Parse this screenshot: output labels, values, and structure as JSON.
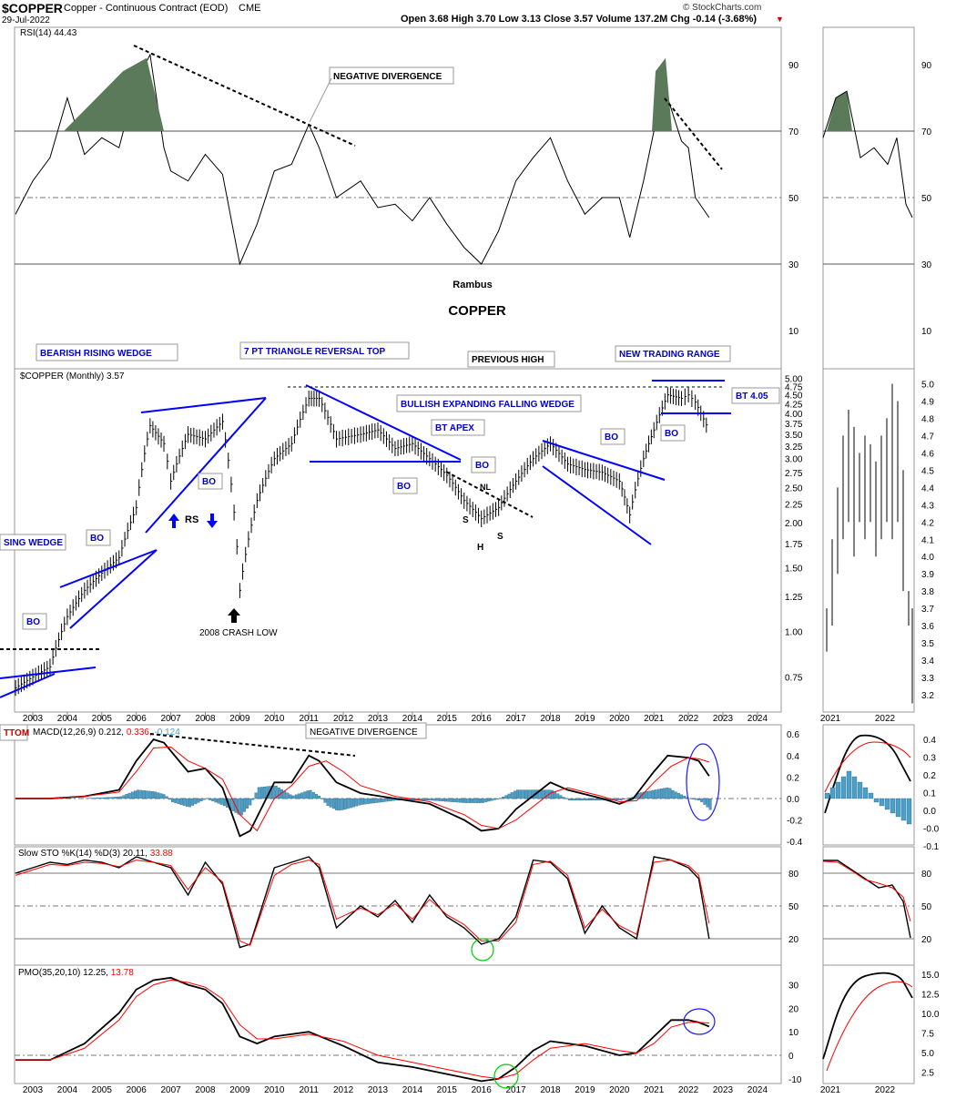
{
  "header": {
    "symbol": "$COPPER",
    "name": "Copper - Continuous Contract (EOD)",
    "exchange": "CME",
    "date": "29-Jul-2022",
    "ohlc": "Open 3.68  High 3.70  Low 3.13  Close 3.57  Volume 137.2M  Chg -0.14 (-3.68%)",
    "chg_arrow": "▼",
    "watermark": "© StockCharts.com"
  },
  "colors": {
    "price_bar": "#000000",
    "trendline": "#0000ff",
    "rsi_fill": "#5a7a5a",
    "macd_hist": "#4aa0c8",
    "signal": "#ff0000",
    "highlight_circle_green": "#00cc00",
    "highlight_circle_blue": "#1a1aff",
    "annotation_text": "#0000cc"
  },
  "panels": {
    "rsi": {
      "label": "RSI(14) 44.43",
      "ticks": [
        90,
        70,
        50,
        30,
        10
      ]
    },
    "price": {
      "label": "$COPPER (Monthly) 3.57",
      "ticks": [
        "5.00",
        "4.75",
        "4.50",
        "4.25",
        "4.00",
        "3.75",
        "3.50",
        "3.25",
        "3.00",
        "2.75",
        "2.50",
        "2.25",
        "2.00",
        "1.75",
        "1.50",
        "1.25",
        "1.00",
        "0.75"
      ]
    },
    "macd": {
      "label_prefix": "MACD(12,26,9) 0.212,",
      "label_signal": "0.336,",
      "label_hist": "-0.124",
      "ticks": [
        "0.6",
        "0.4",
        "0.2",
        "0.0",
        "-0.2",
        "-0.4"
      ]
    },
    "sto": {
      "label_prefix": "Slow STO %K(14) %D(3) 20.11,",
      "label_d": "33.88",
      "ticks": [
        80,
        50,
        20
      ]
    },
    "pmo": {
      "label_prefix": "PMO(35,20,10) 12.25,",
      "label_signal": "13.78",
      "ticks": [
        30,
        20,
        10,
        0,
        -10
      ]
    }
  },
  "inset": {
    "rsi_ticks": [
      90,
      70,
      50,
      30,
      10
    ],
    "price_ticks": [
      "5.0",
      "4.9",
      "4.8",
      "4.7",
      "4.6",
      "4.5",
      "4.4",
      "4.3",
      "4.2",
      "4.1",
      "4.0",
      "3.9",
      "3.8",
      "3.7",
      "3.6",
      "3.5",
      "3.4",
      "3.3",
      "3.2"
    ],
    "macd_ticks": [
      "0.4",
      "0.3",
      "0.2",
      "0.1",
      "0.0",
      "-0.0",
      "-0.1"
    ],
    "sto_ticks": [
      80,
      50,
      20
    ],
    "pmo_ticks": [
      "15.0",
      "12.5",
      "10.0",
      "7.5",
      "5.0",
      "2.5"
    ],
    "years": [
      "2021",
      "2022"
    ]
  },
  "x_axis_years": [
    "2003",
    "2004",
    "2005",
    "2006",
    "2007",
    "2008",
    "2009",
    "2010",
    "2011",
    "2012",
    "2013",
    "2014",
    "2015",
    "2016",
    "2017",
    "2018",
    "2019",
    "2020",
    "2021",
    "2022",
    "2023",
    "2024"
  ],
  "annotations": {
    "title": "COPPER",
    "author": "Rambus",
    "negative_divergence_rsi": "NEGATIVE DIVERGENCE",
    "negative_divergence_macd": "NEGATIVE DIVERGENCE",
    "bearish_rising_wedge": "BEARISH RISING WEDGE",
    "triangle_top": "7 PT TRIANGLE REVERSAL TOP",
    "previous_high": "PREVIOUS HIGH",
    "new_trading_range": "NEW TRADING RANGE",
    "expanding_wedge": "BULLISH EXPANDING FALLING WEDGE",
    "bt_apex": "BT APEX",
    "bt_405": "BT 4.05",
    "rising_wedge_left": "SING WEDGE",
    "bottom_left": "TTOM",
    "crash_low": "2008 CRASH LOW",
    "rs": "RS",
    "s_left": "S",
    "s_right": "S",
    "h": "H",
    "nl": "NL",
    "bo": "BO"
  },
  "chart_data": [
    {
      "type": "line",
      "title": "RSI(14) 44.43",
      "x_range": [
        2002.5,
        2025
      ],
      "ylim": [
        0,
        100
      ],
      "series": [
        {
          "name": "RSI(14)",
          "x": [
            2002.5,
            2003.0,
            2003.5,
            2004.0,
            2004.5,
            2005.0,
            2005.5,
            2006.0,
            2006.4,
            2006.8,
            2007.0,
            2007.5,
            2008.0,
            2008.5,
            2009.0,
            2009.5,
            2010.0,
            2010.5,
            2011.0,
            2011.3,
            2011.8,
            2012.5,
            2013.0,
            2013.5,
            2014.0,
            2014.5,
            2015.0,
            2015.5,
            2016.0,
            2016.5,
            2017.0,
            2017.5,
            2018.0,
            2018.5,
            2019.0,
            2019.5,
            2020.0,
            2020.3,
            2020.7,
            2021.0,
            2021.4,
            2021.8,
            2022.0,
            2022.2,
            2022.6
          ],
          "values": [
            45,
            55,
            62,
            80,
            63,
            68,
            65,
            85,
            93,
            65,
            58,
            55,
            63,
            57,
            30,
            42,
            58,
            60,
            72,
            65,
            50,
            55,
            47,
            48,
            43,
            50,
            42,
            35,
            30,
            40,
            55,
            62,
            68,
            55,
            45,
            50,
            50,
            38,
            55,
            70,
            80,
            67,
            65,
            50,
            44
          ]
        }
      ],
      "reference_lines": [
        70,
        50,
        30
      ]
    },
    {
      "type": "bar",
      "title": "$COPPER (Monthly) 3.57",
      "x_range": [
        2002.5,
        2025
      ],
      "ylim": [
        0.6,
        5.1
      ],
      "y_scale": "log",
      "series": [
        {
          "name": "$COPPER close",
          "x": [
            2002.5,
            2003.0,
            2003.5,
            2004.0,
            2004.5,
            2005.0,
            2005.5,
            2006.0,
            2006.4,
            2006.8,
            2007.0,
            2007.5,
            2008.0,
            2008.5,
            2009.0,
            2009.5,
            2010.0,
            2010.5,
            2011.0,
            2011.3,
            2011.8,
            2012.5,
            2013.0,
            2013.5,
            2014.0,
            2014.5,
            2015.0,
            2015.5,
            2016.0,
            2016.5,
            2017.0,
            2017.5,
            2018.0,
            2018.5,
            2019.0,
            2019.5,
            2020.0,
            2020.3,
            2020.7,
            2021.0,
            2021.4,
            2021.8,
            2022.0,
            2022.2,
            2022.6
          ],
          "values": [
            0.7,
            0.75,
            0.8,
            1.1,
            1.3,
            1.45,
            1.6,
            2.2,
            3.7,
            3.3,
            2.6,
            3.5,
            3.4,
            3.8,
            1.3,
            2.3,
            3.0,
            3.3,
            4.4,
            4.4,
            3.4,
            3.5,
            3.6,
            3.2,
            3.3,
            3.0,
            2.7,
            2.3,
            2.05,
            2.2,
            2.6,
            3.0,
            3.3,
            2.9,
            2.8,
            2.75,
            2.6,
            2.1,
            3.0,
            3.6,
            4.5,
            4.4,
            4.5,
            4.3,
            3.57
          ]
        }
      ],
      "trendlines": [
        "BEARISH RISING WEDGE",
        "7 PT TRIANGLE REVERSAL TOP",
        "BULLISH EXPANDING FALLING WEDGE",
        "NEW TRADING RANGE"
      ]
    },
    {
      "type": "line",
      "title": "MACD(12,26,9) 0.212, 0.336, -0.124",
      "x_range": [
        2002.5,
        2025
      ],
      "ylim": [
        -0.45,
        0.65
      ],
      "series": [
        {
          "name": "MACD",
          "x": [
            2002.5,
            2003.5,
            2004.5,
            2005.5,
            2006.0,
            2006.5,
            2006.8,
            2007.5,
            2008.0,
            2008.5,
            2009.0,
            2009.3,
            2010.0,
            2010.5,
            2011.0,
            2011.3,
            2011.8,
            2012.5,
            2013.5,
            2014.5,
            2015.5,
            2016.0,
            2016.5,
            2017.0,
            2018.0,
            2018.5,
            2019.5,
            2020.0,
            2020.4,
            2021.0,
            2021.4,
            2022.0,
            2022.3,
            2022.6
          ],
          "values": [
            0.0,
            0.0,
            0.02,
            0.08,
            0.35,
            0.55,
            0.52,
            0.25,
            0.28,
            0.1,
            -0.35,
            -0.3,
            0.15,
            0.15,
            0.4,
            0.35,
            0.15,
            0.05,
            0.0,
            -0.05,
            -0.2,
            -0.3,
            -0.28,
            -0.1,
            0.15,
            0.08,
            0.0,
            -0.05,
            0.0,
            0.25,
            0.4,
            0.38,
            0.35,
            0.21
          ]
        },
        {
          "name": "Signal",
          "x": [
            2002.5,
            2003.5,
            2004.5,
            2005.5,
            2006.0,
            2006.5,
            2007.0,
            2007.5,
            2008.0,
            2008.5,
            2009.0,
            2009.5,
            2010.0,
            2010.5,
            2011.0,
            2011.5,
            2012.0,
            2012.5,
            2013.5,
            2014.5,
            2015.5,
            2016.0,
            2016.5,
            2017.0,
            2018.0,
            2018.5,
            2019.5,
            2020.0,
            2020.5,
            2021.0,
            2021.5,
            2022.0,
            2022.3,
            2022.6
          ],
          "values": [
            0.0,
            0.0,
            0.02,
            0.06,
            0.25,
            0.47,
            0.48,
            0.35,
            0.28,
            0.18,
            -0.15,
            -0.3,
            0.0,
            0.12,
            0.3,
            0.35,
            0.25,
            0.12,
            0.02,
            -0.03,
            -0.15,
            -0.25,
            -0.28,
            -0.2,
            0.05,
            0.1,
            0.02,
            -0.03,
            -0.02,
            0.15,
            0.3,
            0.38,
            0.37,
            0.34
          ]
        }
      ],
      "histogram": [
        {
          "x": 2006.2,
          "value": 0.12
        },
        {
          "x": 2008.8,
          "value": -0.15
        },
        {
          "x": 2009.8,
          "value": 0.15
        },
        {
          "x": 2012.0,
          "value": -0.1
        },
        {
          "x": 2017.5,
          "value": 0.12
        },
        {
          "x": 2022.6,
          "value": -0.124
        }
      ]
    },
    {
      "type": "line",
      "title": "Slow STO %K(14) %D(3) 20.11, 33.88",
      "x_range": [
        2002.5,
        2025
      ],
      "ylim": [
        0,
        100
      ],
      "series": [
        {
          "name": "%K",
          "x": [
            2002.5,
            2003.0,
            2003.5,
            2004.0,
            2004.5,
            2005.0,
            2005.5,
            2006.0,
            2006.5,
            2007.0,
            2007.5,
            2008.0,
            2008.5,
            2009.0,
            2009.3,
            2010.0,
            2010.5,
            2011.0,
            2011.3,
            2011.8,
            2012.5,
            2013.0,
            2013.5,
            2014.0,
            2014.5,
            2015.0,
            2015.5,
            2016.0,
            2016.5,
            2017.0,
            2017.5,
            2018.0,
            2018.5,
            2019.0,
            2019.5,
            2020.0,
            2020.5,
            2021.0,
            2021.5,
            2022.0,
            2022.3,
            2022.6
          ],
          "values": [
            80,
            85,
            90,
            88,
            92,
            90,
            85,
            95,
            90,
            85,
            60,
            90,
            70,
            12,
            15,
            85,
            90,
            95,
            85,
            30,
            50,
            40,
            55,
            35,
            60,
            40,
            30,
            15,
            20,
            40,
            92,
            90,
            75,
            25,
            50,
            30,
            20,
            95,
            92,
            85,
            75,
            20
          ]
        },
        {
          "name": "%D",
          "x": [
            2002.5,
            2003.0,
            2003.5,
            2004.0,
            2004.5,
            2005.0,
            2005.5,
            2006.0,
            2006.5,
            2007.0,
            2007.5,
            2008.0,
            2008.5,
            2009.0,
            2009.3,
            2010.0,
            2010.5,
            2011.0,
            2011.3,
            2011.8,
            2012.5,
            2013.0,
            2013.5,
            2014.0,
            2014.5,
            2015.0,
            2015.5,
            2016.0,
            2016.5,
            2017.0,
            2017.5,
            2018.0,
            2018.5,
            2019.0,
            2019.5,
            2020.0,
            2020.5,
            2021.0,
            2021.5,
            2022.0,
            2022.3,
            2022.6
          ],
          "values": [
            78,
            83,
            88,
            87,
            90,
            89,
            86,
            92,
            90,
            87,
            65,
            85,
            72,
            18,
            14,
            78,
            88,
            92,
            88,
            38,
            48,
            42,
            52,
            38,
            56,
            42,
            33,
            18,
            18,
            35,
            88,
            91,
            78,
            30,
            47,
            32,
            24,
            90,
            92,
            87,
            78,
            34
          ]
        }
      ],
      "reference_lines": [
        80,
        50,
        20
      ]
    },
    {
      "type": "line",
      "title": "PMO(35,20,10) 12.25, 13.78",
      "x_range": [
        2002.5,
        2025
      ],
      "ylim": [
        -12,
        35
      ],
      "series": [
        {
          "name": "PMO",
          "x": [
            2002.5,
            2003.5,
            2004.5,
            2005.5,
            2006.0,
            2006.5,
            2007.0,
            2007.5,
            2008.0,
            2008.5,
            2009.0,
            2009.5,
            2010.0,
            2011.0,
            2012.0,
            2013.0,
            2014.0,
            2015.0,
            2016.0,
            2016.5,
            2017.0,
            2017.5,
            2018.0,
            2019.0,
            2020.0,
            2020.5,
            2021.0,
            2021.5,
            2022.0,
            2022.3,
            2022.6
          ],
          "values": [
            -2,
            -2,
            5,
            18,
            28,
            32,
            33,
            30,
            28,
            22,
            8,
            5,
            8,
            10,
            4,
            -3,
            -5,
            -8,
            -11,
            -10,
            -5,
            2,
            6,
            4,
            0,
            1,
            8,
            15,
            15,
            14,
            12.25
          ]
        },
        {
          "name": "Signal",
          "x": [
            2002.5,
            2003.5,
            2004.5,
            2005.5,
            2006.0,
            2006.5,
            2007.0,
            2007.5,
            2008.0,
            2008.5,
            2009.0,
            2009.5,
            2010.0,
            2011.0,
            2012.0,
            2013.0,
            2014.0,
            2015.0,
            2016.0,
            2016.5,
            2017.0,
            2017.5,
            2018.0,
            2019.0,
            2020.0,
            2020.5,
            2021.0,
            2021.5,
            2022.0,
            2022.3,
            2022.6
          ],
          "values": [
            -2,
            -2,
            3,
            15,
            25,
            30,
            32,
            31,
            29,
            24,
            13,
            7,
            7,
            9,
            6,
            0,
            -3,
            -6,
            -9,
            -10,
            -8,
            -2,
            3,
            5,
            2,
            1,
            5,
            12,
            14,
            14,
            13.78
          ]
        }
      ],
      "reference_lines": [
        0
      ]
    }
  ]
}
